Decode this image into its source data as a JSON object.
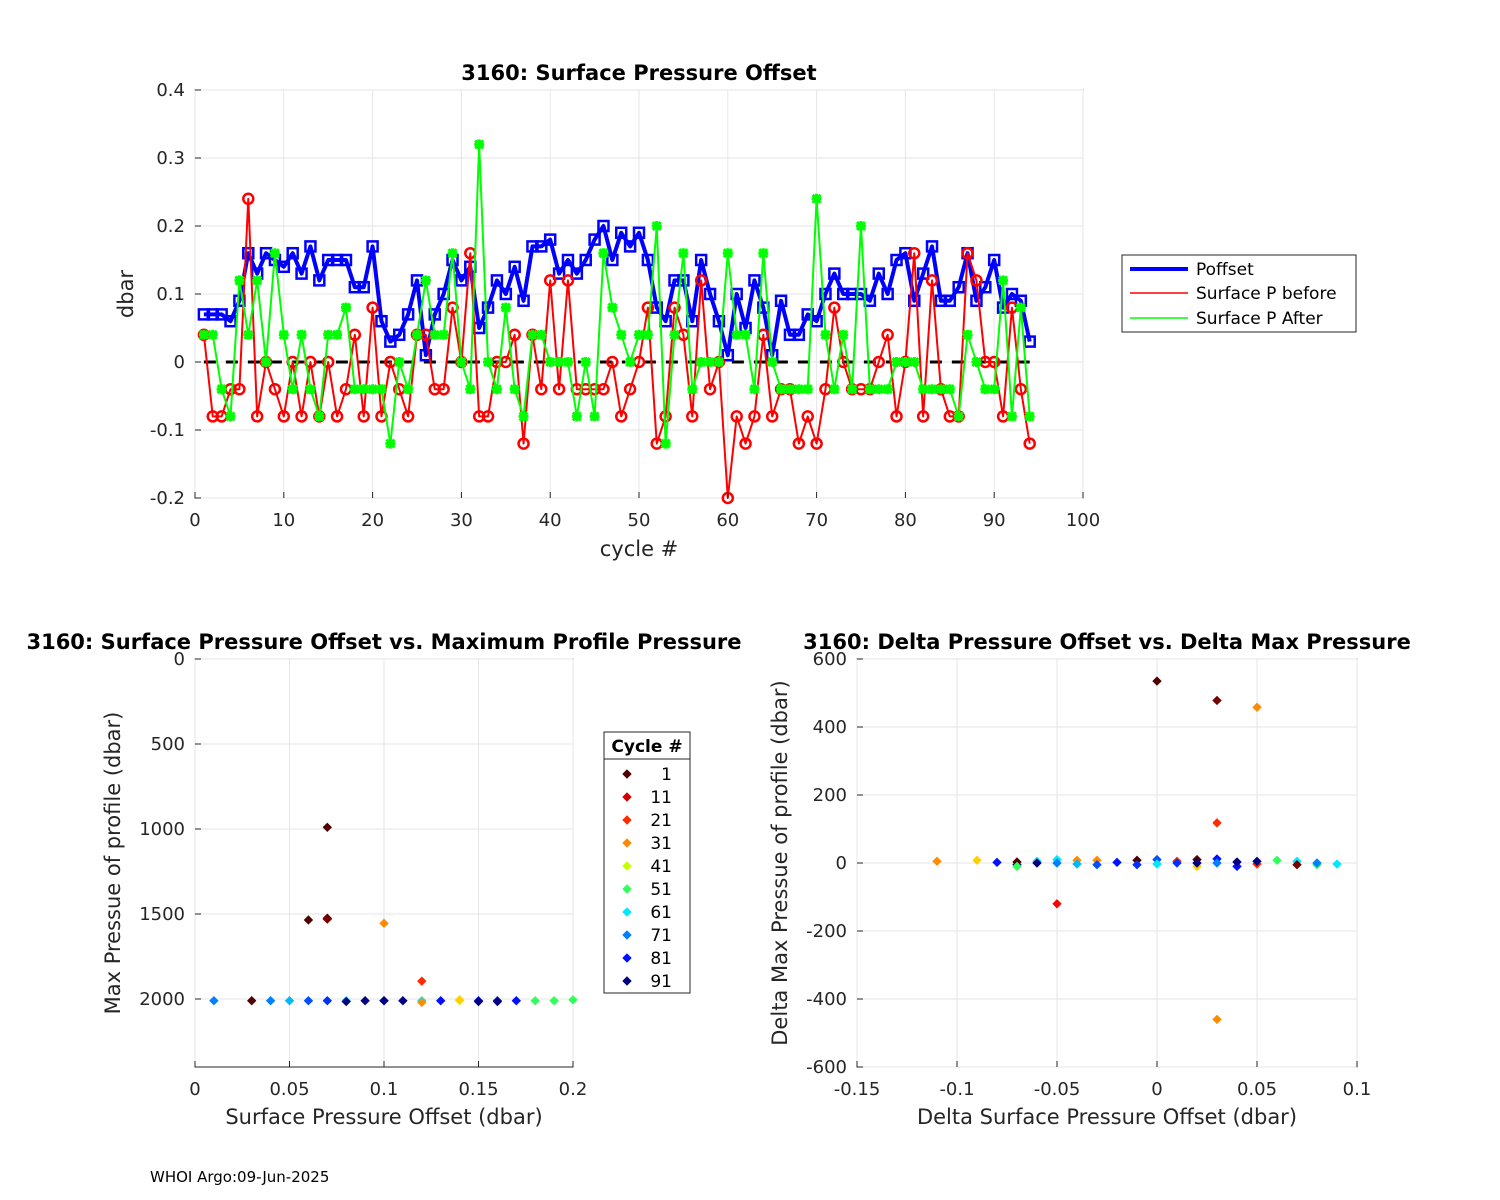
{
  "footer": "WHOI Argo:09-Jun-2025",
  "colors": {
    "poffset": "#0000ff",
    "before": "#ff0000",
    "after": "#00ff00",
    "zero_line": "#000000",
    "grid": "#e6e6e6"
  },
  "chart_data": [
    {
      "type": "line",
      "title": "3160: Surface Pressure Offset",
      "xlabel": "cycle #",
      "ylabel": "dbar",
      "xlim": [
        0,
        100
      ],
      "ylim": [
        -0.2,
        0.4
      ],
      "xticks": [
        0,
        10,
        20,
        30,
        40,
        50,
        60,
        70,
        80,
        90,
        100
      ],
      "yticks": [
        -0.2,
        -0.1,
        0,
        0.1,
        0.2,
        0.3,
        0.4
      ],
      "grid": true,
      "legend": "outside-right",
      "x": [
        1,
        2,
        3,
        4,
        5,
        6,
        7,
        8,
        9,
        10,
        11,
        12,
        13,
        14,
        15,
        16,
        17,
        18,
        19,
        20,
        21,
        22,
        23,
        24,
        25,
        26,
        27,
        28,
        29,
        30,
        31,
        32,
        33,
        34,
        35,
        36,
        37,
        38,
        39,
        40,
        41,
        42,
        43,
        44,
        45,
        46,
        47,
        48,
        49,
        50,
        51,
        52,
        53,
        54,
        55,
        56,
        57,
        58,
        59,
        60,
        61,
        62,
        63,
        64,
        65,
        66,
        67,
        68,
        69,
        70,
        71,
        72,
        73,
        74,
        75,
        76,
        77,
        78,
        79,
        80,
        81,
        82,
        83,
        84,
        85,
        86,
        87,
        88,
        89,
        90,
        91,
        92,
        93,
        94
      ],
      "series": [
        {
          "name": "Poffset",
          "values": [
            0.07,
            0.07,
            0.07,
            0.06,
            0.09,
            0.16,
            0.13,
            0.16,
            0.15,
            0.14,
            0.16,
            0.13,
            0.17,
            0.12,
            0.15,
            0.15,
            0.15,
            0.11,
            0.11,
            0.17,
            0.06,
            0.03,
            0.04,
            0.07,
            0.12,
            0.01,
            0.07,
            0.1,
            0.15,
            0.12,
            0.14,
            0.05,
            0.08,
            0.12,
            0.1,
            0.14,
            0.09,
            0.17,
            0.17,
            0.18,
            0.13,
            0.15,
            0.13,
            0.15,
            0.18,
            0.2,
            0.15,
            0.19,
            0.17,
            0.19,
            0.15,
            0.08,
            0.06,
            0.12,
            0.12,
            0.06,
            0.15,
            0.1,
            0.06,
            0.01,
            0.1,
            0.05,
            0.12,
            0.08,
            0.01,
            0.09,
            0.04,
            0.04,
            0.07,
            0.06,
            0.1,
            0.13,
            0.1,
            0.1,
            0.1,
            0.09,
            0.13,
            0.1,
            0.15,
            0.16,
            0.09,
            0.13,
            0.17,
            0.09,
            0.09,
            0.11,
            0.16,
            0.09,
            0.11,
            0.15,
            0.08,
            0.1,
            0.09,
            0.03
          ]
        },
        {
          "name": "Surface P before",
          "values": [
            0.04,
            -0.08,
            -0.08,
            -0.04,
            -0.04,
            0.24,
            -0.08,
            0.0,
            -0.04,
            -0.08,
            0.0,
            -0.08,
            0.0,
            -0.08,
            0.0,
            -0.08,
            -0.04,
            0.04,
            -0.08,
            0.08,
            -0.08,
            0.0,
            -0.04,
            -0.08,
            0.04,
            0.04,
            -0.04,
            -0.04,
            0.08,
            0.0,
            0.16,
            -0.08,
            -0.08,
            0.0,
            0.0,
            0.04,
            -0.12,
            0.04,
            -0.04,
            0.12,
            -0.04,
            0.12,
            -0.04,
            -0.04,
            -0.04,
            -0.04,
            0.0,
            -0.08,
            -0.04,
            0.0,
            0.08,
            -0.12,
            -0.08,
            0.08,
            0.04,
            -0.08,
            0.12,
            -0.04,
            0.0,
            -0.2,
            -0.08,
            -0.12,
            -0.08,
            0.04,
            -0.08,
            -0.04,
            -0.04,
            -0.12,
            -0.08,
            -0.12,
            -0.04,
            0.08,
            0.0,
            -0.04,
            -0.04,
            -0.04,
            0.0,
            0.04,
            -0.08,
            0.0,
            0.16,
            -0.08,
            0.12,
            -0.04,
            -0.08,
            -0.08,
            0.16,
            0.12,
            0.0,
            0.0,
            -0.08,
            0.08,
            -0.04,
            -0.12
          ]
        },
        {
          "name": "Surface P After",
          "values": [
            0.04,
            0.04,
            -0.04,
            -0.08,
            0.12,
            0.04,
            0.12,
            0.0,
            0.16,
            0.04,
            -0.04,
            0.04,
            -0.04,
            -0.08,
            0.04,
            0.04,
            0.08,
            -0.04,
            -0.04,
            -0.04,
            -0.04,
            -0.12,
            0.0,
            -0.04,
            0.04,
            0.12,
            0.04,
            0.04,
            0.16,
            0.0,
            -0.04,
            0.32,
            0.0,
            -0.04,
            0.08,
            -0.04,
            -0.08,
            0.04,
            0.04,
            0.0,
            0.0,
            0.0,
            -0.08,
            0.0,
            -0.08,
            0.16,
            0.08,
            0.04,
            0.0,
            0.04,
            0.04,
            0.2,
            -0.12,
            0.04,
            0.16,
            -0.04,
            0.0,
            0.0,
            0.0,
            0.16,
            0.04,
            0.04,
            -0.04,
            0.16,
            0.0,
            -0.04,
            -0.04,
            -0.04,
            -0.04,
            0.24,
            0.04,
            -0.04,
            0.04,
            -0.04,
            0.2,
            -0.04,
            -0.04,
            -0.04,
            0.0,
            0.0,
            0.0,
            -0.04,
            -0.04,
            -0.04,
            -0.04,
            -0.08,
            0.04,
            0.0,
            -0.04,
            -0.04,
            0.12,
            -0.08,
            0.08,
            -0.08
          ]
        }
      ],
      "zero_line": {
        "y": 0,
        "style": "dashed"
      }
    },
    {
      "type": "scatter",
      "title": "3160: Surface Pressure Offset vs. Maximum Profile Pressure",
      "xlabel": "Surface Pressure Offset (dbar)",
      "ylabel": "Max Pressue of profile (dbar)",
      "xlim": [
        0,
        0.2
      ],
      "ylim": [
        0,
        2400
      ],
      "y_reversed": true,
      "xticks": [
        0,
        0.05,
        0.1,
        0.15,
        0.2
      ],
      "yticks": [
        0,
        500,
        1000,
        1500,
        2000
      ],
      "grid": true,
      "legend": {
        "title": "Cycle #",
        "entries": [
          "1",
          "11",
          "21",
          "31",
          "41",
          "51",
          "61",
          "71",
          "81",
          "91"
        ],
        "colors": [
          "#500000",
          "#d20000",
          "#ff2a00",
          "#ff8c00",
          "#c8ff00",
          "#30ff5a",
          "#00e8ff",
          "#0080ff",
          "#0010ff",
          "#000080"
        ]
      },
      "points": [
        {
          "x": 0.07,
          "y": 990,
          "c": "#500000"
        },
        {
          "x": 0.06,
          "y": 1535,
          "c": "#500000"
        },
        {
          "x": 0.07,
          "y": 1525,
          "c": "#500000"
        },
        {
          "x": 0.07,
          "y": 1530,
          "c": "#7a0000"
        },
        {
          "x": 0.1,
          "y": 1555,
          "c": "#ff8c00"
        },
        {
          "x": 0.12,
          "y": 1895,
          "c": "#ff2a00"
        },
        {
          "x": 0.01,
          "y": 2010,
          "c": "#0080ff"
        },
        {
          "x": 0.03,
          "y": 2010,
          "c": "#500000"
        },
        {
          "x": 0.04,
          "y": 2010,
          "c": "#0080ff"
        },
        {
          "x": 0.05,
          "y": 2010,
          "c": "#00b8ff"
        },
        {
          "x": 0.06,
          "y": 2010,
          "c": "#0050ff"
        },
        {
          "x": 0.07,
          "y": 2010,
          "c": "#0030ff"
        },
        {
          "x": 0.08,
          "y": 2010,
          "c": "#00e8ff"
        },
        {
          "x": 0.08,
          "y": 2015,
          "c": "#000080"
        },
        {
          "x": 0.09,
          "y": 2010,
          "c": "#000080"
        },
        {
          "x": 0.1,
          "y": 2010,
          "c": "#0010ff"
        },
        {
          "x": 0.1,
          "y": 2010,
          "c": "#000080"
        },
        {
          "x": 0.11,
          "y": 2010,
          "c": "#000080"
        },
        {
          "x": 0.12,
          "y": 2010,
          "c": "#00e8ff"
        },
        {
          "x": 0.12,
          "y": 2020,
          "c": "#ff8c00"
        },
        {
          "x": 0.13,
          "y": 2010,
          "c": "#0010ff"
        },
        {
          "x": 0.14,
          "y": 2010,
          "c": "#c8ff00"
        },
        {
          "x": 0.14,
          "y": 2005,
          "c": "#ffd000"
        },
        {
          "x": 0.15,
          "y": 2010,
          "c": "#0010ff"
        },
        {
          "x": 0.15,
          "y": 2015,
          "c": "#000080"
        },
        {
          "x": 0.16,
          "y": 2010,
          "c": "#0030ff"
        },
        {
          "x": 0.16,
          "y": 2015,
          "c": "#000080"
        },
        {
          "x": 0.17,
          "y": 2010,
          "c": "#0010ff"
        },
        {
          "x": 0.18,
          "y": 2010,
          "c": "#30ff5a"
        },
        {
          "x": 0.19,
          "y": 2010,
          "c": "#30ff5a"
        },
        {
          "x": 0.2,
          "y": 2005,
          "c": "#30ff5a"
        }
      ]
    },
    {
      "type": "scatter",
      "title": "3160: Delta Pressure Offset vs. Delta Max Pressure",
      "xlabel": "Delta Surface Pressure Offset (dbar)",
      "ylabel": "Delta Max Pressue of profile (dbar)",
      "xlim": [
        -0.15,
        0.1
      ],
      "ylim": [
        -600,
        600
      ],
      "xticks": [
        -0.15,
        -0.1,
        -0.05,
        0,
        0.05,
        0.1
      ],
      "yticks": [
        -600,
        -400,
        -200,
        0,
        200,
        400,
        600
      ],
      "grid": true,
      "points": [
        {
          "x": 0.0,
          "y": 535,
          "c": "#500000"
        },
        {
          "x": 0.03,
          "y": 478,
          "c": "#7a0000"
        },
        {
          "x": 0.05,
          "y": 458,
          "c": "#ff8c00"
        },
        {
          "x": 0.03,
          "y": 118,
          "c": "#ff2a00"
        },
        {
          "x": -0.05,
          "y": -120,
          "c": "#ff0000"
        },
        {
          "x": 0.03,
          "y": -460,
          "c": "#ff8c00"
        },
        {
          "x": -0.11,
          "y": 5,
          "c": "#ff8c00"
        },
        {
          "x": -0.09,
          "y": 8,
          "c": "#ffd000"
        },
        {
          "x": -0.08,
          "y": 2,
          "c": "#0010ff"
        },
        {
          "x": -0.07,
          "y": -5,
          "c": "#000080"
        },
        {
          "x": -0.07,
          "y": 3,
          "c": "#500000"
        },
        {
          "x": -0.07,
          "y": -10,
          "c": "#30ff5a"
        },
        {
          "x": -0.06,
          "y": 5,
          "c": "#00e8ff"
        },
        {
          "x": -0.06,
          "y": 0,
          "c": "#000080"
        },
        {
          "x": -0.05,
          "y": 10,
          "c": "#00e8ff"
        },
        {
          "x": -0.05,
          "y": 0,
          "c": "#0080ff"
        },
        {
          "x": -0.04,
          "y": 8,
          "c": "#ff8c00"
        },
        {
          "x": -0.04,
          "y": -3,
          "c": "#00b8ff"
        },
        {
          "x": -0.03,
          "y": 8,
          "c": "#ff8c00"
        },
        {
          "x": -0.03,
          "y": -5,
          "c": "#0050ff"
        },
        {
          "x": -0.02,
          "y": 2,
          "c": "#0010ff"
        },
        {
          "x": -0.01,
          "y": 8,
          "c": "#500000"
        },
        {
          "x": -0.01,
          "y": -5,
          "c": "#0030ff"
        },
        {
          "x": 0.0,
          "y": 10,
          "c": "#0050ff"
        },
        {
          "x": 0.0,
          "y": -3,
          "c": "#00e8ff"
        },
        {
          "x": 0.01,
          "y": 5,
          "c": "#ff2a00"
        },
        {
          "x": 0.01,
          "y": 0,
          "c": "#0030ff"
        },
        {
          "x": 0.02,
          "y": 10,
          "c": "#500000"
        },
        {
          "x": 0.02,
          "y": -10,
          "c": "#ffd000"
        },
        {
          "x": 0.02,
          "y": 0,
          "c": "#000080"
        },
        {
          "x": 0.03,
          "y": 12,
          "c": "#0010ff"
        },
        {
          "x": 0.03,
          "y": 0,
          "c": "#0080ff"
        },
        {
          "x": 0.04,
          "y": -10,
          "c": "#0010ff"
        },
        {
          "x": 0.04,
          "y": 3,
          "c": "#000080"
        },
        {
          "x": 0.05,
          "y": -3,
          "c": "#ff2a00"
        },
        {
          "x": 0.05,
          "y": 5,
          "c": "#000080"
        },
        {
          "x": 0.06,
          "y": 8,
          "c": "#30ff5a"
        },
        {
          "x": 0.07,
          "y": 5,
          "c": "#00e8ff"
        },
        {
          "x": 0.07,
          "y": -5,
          "c": "#7a0000"
        },
        {
          "x": 0.08,
          "y": -5,
          "c": "#30ff5a"
        },
        {
          "x": 0.08,
          "y": 0,
          "c": "#0080ff"
        },
        {
          "x": 0.09,
          "y": -3,
          "c": "#00e8ff"
        }
      ]
    }
  ]
}
